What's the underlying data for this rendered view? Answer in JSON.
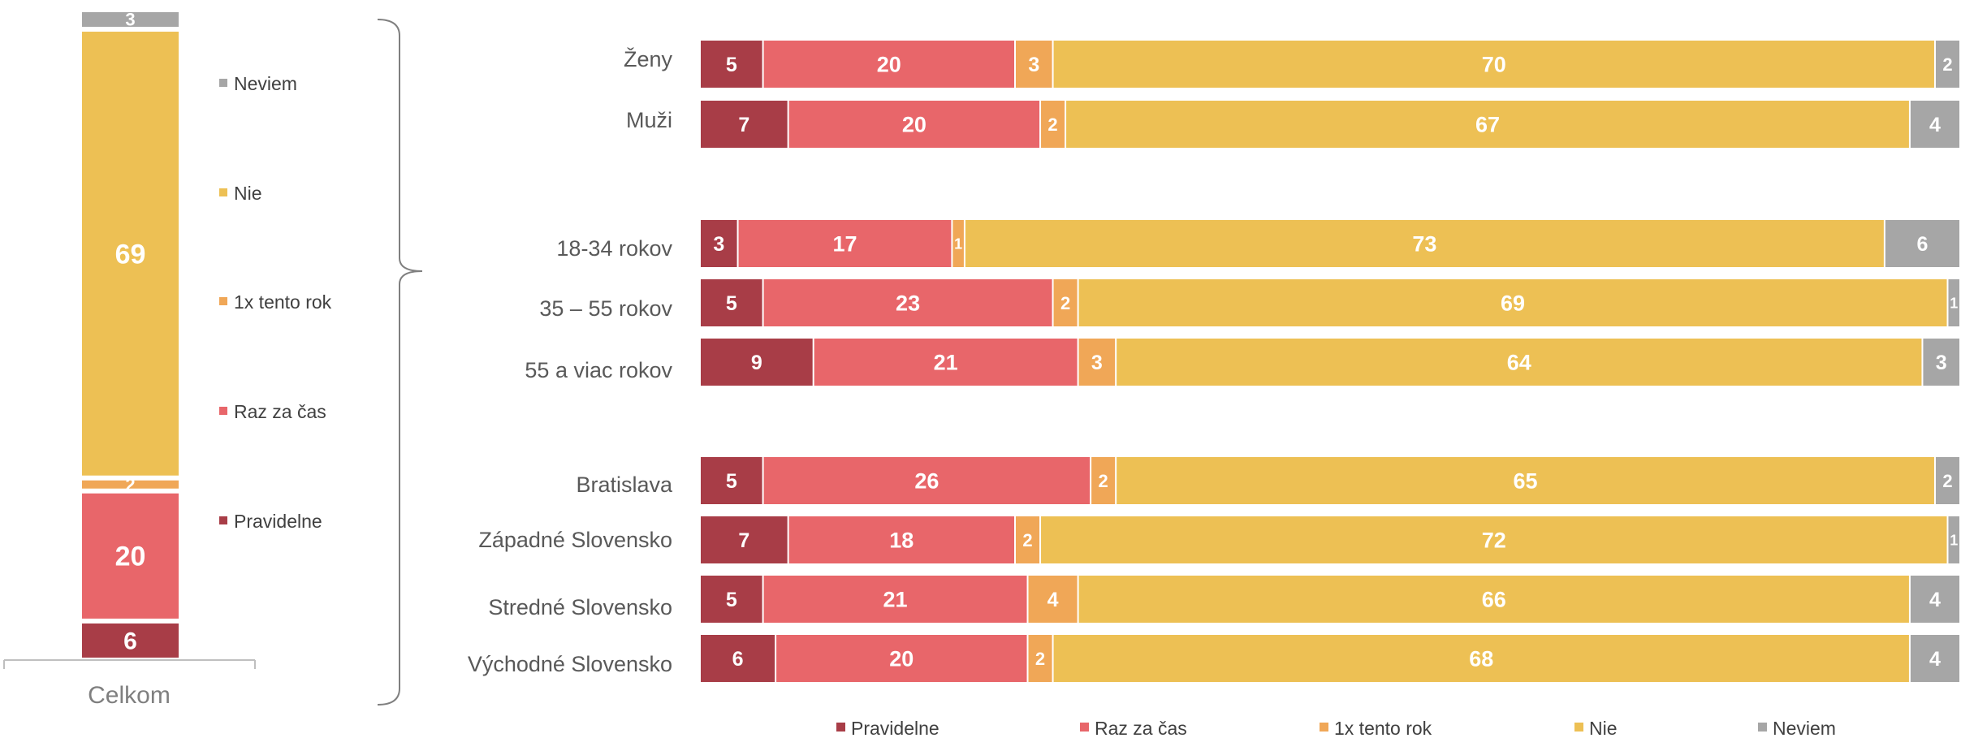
{
  "colors": {
    "Pravidelne": "#A83D47",
    "Raz za čas": "#E8666A",
    "1x tento rok": "#F0A757",
    "Nie": "#EDC054",
    "Neviem": "#A6A6A6"
  },
  "chart_data": [
    {
      "type": "bar",
      "stacked": true,
      "orientation": "vertical",
      "categories": [
        "Celkom"
      ],
      "series": [
        {
          "name": "Pravidelne",
          "values": [
            6
          ]
        },
        {
          "name": "Raz za čas",
          "values": [
            20
          ]
        },
        {
          "name": "1x tento rok",
          "values": [
            2
          ]
        },
        {
          "name": "Nie",
          "values": [
            69
          ]
        },
        {
          "name": "Neviem",
          "values": [
            3
          ]
        }
      ],
      "legend": [
        "Neviem",
        "Nie",
        "1x tento rok",
        "Raz za čas",
        "Pravidelne"
      ],
      "legend_position": "right",
      "ylim": [
        0,
        100
      ],
      "grid": false
    },
    {
      "type": "bar",
      "stacked": true,
      "orientation": "horizontal",
      "groups": [
        [
          "Ženy",
          "Muži"
        ],
        [
          "18-34 rokov",
          "35 – 55 rokov",
          "55 a viac rokov"
        ],
        [
          "Bratislava",
          "Západné Slovensko",
          "Stredné Slovensko",
          "Východné Slovensko"
        ]
      ],
      "categories": [
        "Ženy",
        "Muži",
        "18-34 rokov",
        "35 – 55 rokov",
        "55 a viac rokov",
        "Bratislava",
        "Západné Slovensko",
        "Stredné Slovensko",
        "Východné Slovensko"
      ],
      "series": [
        {
          "name": "Pravidelne",
          "values": [
            5,
            7,
            3,
            5,
            9,
            5,
            7,
            5,
            6
          ]
        },
        {
          "name": "Raz za čas",
          "values": [
            20,
            20,
            17,
            23,
            21,
            26,
            18,
            21,
            20
          ]
        },
        {
          "name": "1x tento rok",
          "values": [
            3,
            2,
            1,
            2,
            3,
            2,
            2,
            4,
            2
          ]
        },
        {
          "name": "Nie",
          "values": [
            70,
            67,
            73,
            69,
            64,
            65,
            72,
            66,
            68
          ]
        },
        {
          "name": "Neviem",
          "values": [
            2,
            4,
            6,
            1,
            3,
            2,
            1,
            4,
            4
          ]
        }
      ],
      "legend": [
        "Pravidelne",
        "Raz za čas",
        "1x tento rok",
        "Nie",
        "Neviem"
      ],
      "legend_position": "bottom",
      "xlim": [
        0,
        100
      ],
      "grid": false
    }
  ]
}
